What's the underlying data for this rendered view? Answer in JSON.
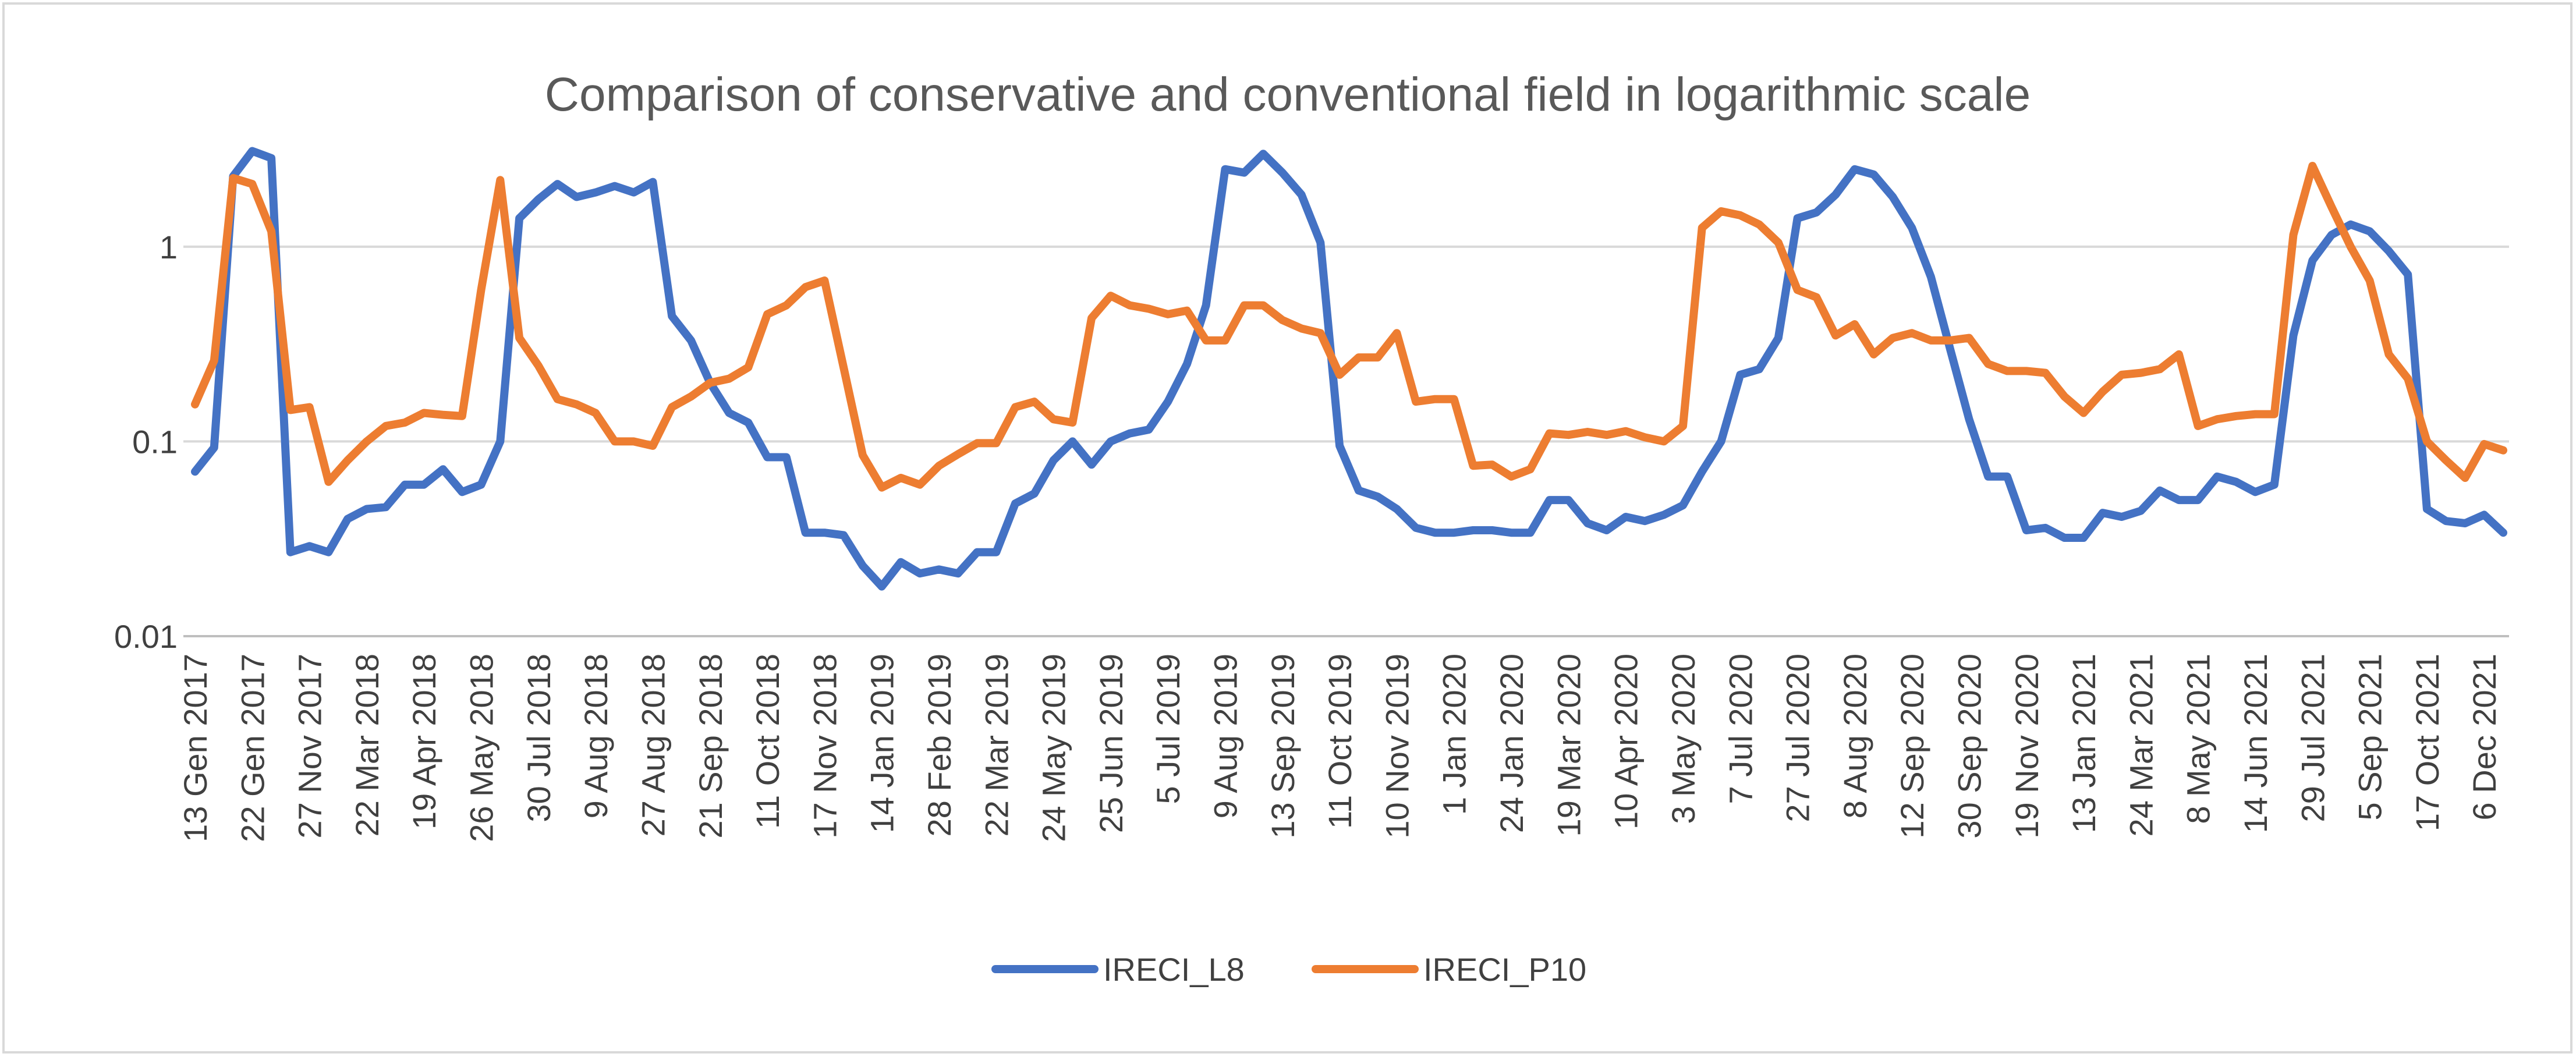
{
  "chart_data": {
    "type": "line",
    "title": "Comparison of conservative and conventional field in logarithmic scale",
    "xlabel": "",
    "ylabel": "",
    "yscale": "log",
    "ylim": [
      0.01,
      5
    ],
    "yticks": [
      {
        "value": 0.01,
        "label": "0.01"
      },
      {
        "value": 0.1,
        "label": "0.1"
      },
      {
        "value": 1,
        "label": "1"
      }
    ],
    "legend_position": "bottom",
    "x_tick_labels": [
      "13 Gen 2017",
      "22 Gen 2017",
      "27 Nov 2017",
      "22 Mar 2018",
      "19 Apr 2018",
      "26 May 2018",
      "30 Jul 2018",
      "9 Aug 2018",
      "27 Aug 2018",
      "21 Sep 2018",
      "11 Oct 2018",
      "17 Nov 2018",
      "14 Jan 2019",
      "28 Feb 2019",
      "22 Mar 2019",
      "24 May 2019",
      "25 Jun 2019",
      "5 Jul 2019",
      "9 Aug 2019",
      "13 Sep 2019",
      "11 Oct 2019",
      "10 Nov 2019",
      "1 Jan 2020",
      "24 Jan 2020",
      "19 Mar 2020",
      "10 Apr 2020",
      "3 May 2020",
      "7 Jul 2020",
      "27 Jul 2020",
      "8 Aug 2020",
      "12 Sep 2020",
      "30 Sep 2020",
      "19 Nov 2020",
      "13 Jan 2021",
      "24 Mar 2021",
      "8 May 2021",
      "14 Jun 2021",
      "29 Jul 2021",
      "5 Sep 2021",
      "17 Oct 2021",
      "6 Dec 2021"
    ],
    "x_tick_every": 3,
    "series": [
      {
        "name": "IRECI_L8",
        "color": "#4472c4",
        "values": [
          0.07,
          0.093,
          2.3,
          3.1,
          2.85,
          0.027,
          0.029,
          0.027,
          0.04,
          0.045,
          0.046,
          0.06,
          0.06,
          0.072,
          0.055,
          0.06,
          0.1,
          1.4,
          1.75,
          2.1,
          1.8,
          1.9,
          2.05,
          1.9,
          2.15,
          0.44,
          0.33,
          0.2,
          0.14,
          0.125,
          0.083,
          0.083,
          0.034,
          0.034,
          0.033,
          0.023,
          0.018,
          0.024,
          0.021,
          0.022,
          0.021,
          0.027,
          0.027,
          0.048,
          0.054,
          0.08,
          0.1,
          0.076,
          0.1,
          0.11,
          0.115,
          0.16,
          0.25,
          0.5,
          2.5,
          2.4,
          3.0,
          2.4,
          1.85,
          1.05,
          0.095,
          0.056,
          0.052,
          0.045,
          0.036,
          0.034,
          0.034,
          0.035,
          0.035,
          0.034,
          0.034,
          0.05,
          0.05,
          0.038,
          0.035,
          0.041,
          0.039,
          0.042,
          0.047,
          0.07,
          0.1,
          0.22,
          0.235,
          0.34,
          1.4,
          1.5,
          1.85,
          2.5,
          2.35,
          1.8,
          1.25,
          0.7,
          0.3,
          0.13,
          0.066,
          0.066,
          0.035,
          0.036,
          0.032,
          0.032,
          0.043,
          0.041,
          0.044,
          0.056,
          0.05,
          0.05,
          0.066,
          0.062,
          0.055,
          0.06,
          0.35,
          0.85,
          1.15,
          1.3,
          1.2,
          0.95,
          0.72,
          0.045,
          0.039,
          0.038,
          0.042,
          0.034
        ]
      },
      {
        "name": "IRECI_P10",
        "color": "#ed7d31",
        "values": [
          0.155,
          0.26,
          2.25,
          2.1,
          1.2,
          0.145,
          0.15,
          0.062,
          0.08,
          0.1,
          0.12,
          0.125,
          0.14,
          0.137,
          0.135,
          0.6,
          2.2,
          0.34,
          0.245,
          0.165,
          0.155,
          0.14,
          0.1,
          0.1,
          0.095,
          0.15,
          0.17,
          0.2,
          0.21,
          0.24,
          0.45,
          0.5,
          0.62,
          0.67,
          0.24,
          0.085,
          0.058,
          0.065,
          0.06,
          0.075,
          0.086,
          0.098,
          0.098,
          0.15,
          0.16,
          0.13,
          0.125,
          0.43,
          0.56,
          0.5,
          0.48,
          0.45,
          0.47,
          0.33,
          0.33,
          0.5,
          0.5,
          0.42,
          0.38,
          0.36,
          0.22,
          0.27,
          0.27,
          0.36,
          0.16,
          0.165,
          0.165,
          0.075,
          0.076,
          0.066,
          0.072,
          0.11,
          0.108,
          0.112,
          0.108,
          0.113,
          0.105,
          0.1,
          0.12,
          1.25,
          1.52,
          1.45,
          1.3,
          1.05,
          0.6,
          0.55,
          0.35,
          0.4,
          0.28,
          0.34,
          0.36,
          0.33,
          0.33,
          0.34,
          0.25,
          0.23,
          0.23,
          0.225,
          0.17,
          0.14,
          0.18,
          0.22,
          0.225,
          0.235,
          0.28,
          0.12,
          0.13,
          0.135,
          0.138,
          0.138,
          1.15,
          2.6,
          1.6,
          1.0,
          0.67,
          0.28,
          0.21,
          0.1,
          0.08,
          0.065,
          0.097,
          0.09
        ]
      }
    ]
  }
}
